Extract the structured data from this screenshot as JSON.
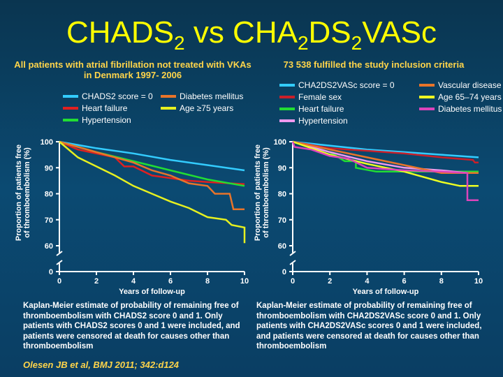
{
  "title": {
    "pre": "CHADS",
    "s1": "2",
    "mid": " vs CHA",
    "s2": "2",
    "mid2": "DS",
    "s3": "2",
    "post": "VASc"
  },
  "left_subtitle": "All patients with atrial fibrillation not treated with VKAs in Denmark 1997- 2006",
  "right_subtitle": "73 538 fulfilled the study inclusion criteria",
  "left_caption": "Kaplan-Meier estimate of probability of remaining free of thromboembolism with CHADS2 score 0 and 1. Only patients with CHADS2 scores 0 and 1 were included, and patients were censored at death for causes other than thromboembolism",
  "right_caption": "Kaplan-Meier estimate of probability of remaining free of thromboembolism with CHA2DS2VASc score 0 and 1. Only patients with CHA2DS2VASc scores 0 and 1 were included, and patients were censored at death for causes other than thromboembolism",
  "reference": "Olesen JB et al, BMJ 2011; 342:d124",
  "chart_data": [
    {
      "type": "line",
      "xlabel": "Years of follow-up",
      "ylabel": "Proportion of patients free of thromboembolism (%)",
      "xlim": [
        0,
        10
      ],
      "ylim": [
        60,
        100
      ],
      "axis_break": true,
      "xticks": [
        0,
        2,
        4,
        6,
        8,
        10
      ],
      "yticks": [
        0,
        60,
        70,
        80,
        90,
        100
      ],
      "legend": "top",
      "series": [
        {
          "name": "CHADS2 score = 0",
          "color": "#33ccff",
          "points": [
            [
              0,
              100
            ],
            [
              2,
              97.5
            ],
            [
              4,
              95.5
            ],
            [
              6,
              93
            ],
            [
              8,
              91
            ],
            [
              10,
              89
            ]
          ]
        },
        {
          "name": "Heart failure",
          "color": "#e02020",
          "points": [
            [
              0,
              100
            ],
            [
              1,
              97
            ],
            [
              2,
              95.5
            ],
            [
              3,
              94
            ],
            [
              3.5,
              90.5
            ],
            [
              4,
              90.5
            ],
            [
              5,
              87
            ],
            [
              6,
              86
            ],
            [
              7,
              85
            ],
            [
              8,
              84.5
            ],
            [
              10,
              83.7
            ]
          ]
        },
        {
          "name": "Hypertension",
          "color": "#22dd33",
          "points": [
            [
              0,
              100
            ],
            [
              2,
              96
            ],
            [
              4,
              92.5
            ],
            [
              6,
              89
            ],
            [
              8,
              85.5
            ],
            [
              10,
              83
            ]
          ]
        },
        {
          "name": "Diabetes mellitus",
          "color": "#e8742a",
          "points": [
            [
              0,
              100
            ],
            [
              2,
              96
            ],
            [
              4,
              92
            ],
            [
              5,
              89
            ],
            [
              6,
              87
            ],
            [
              7,
              84
            ],
            [
              8,
              83
            ],
            [
              8.4,
              80
            ],
            [
              9.2,
              80
            ],
            [
              9.3,
              77
            ],
            [
              9.4,
              74
            ],
            [
              10,
              74
            ]
          ]
        },
        {
          "name": "Age ≥75 years",
          "color": "#e6f020",
          "points": [
            [
              0,
              100
            ],
            [
              1,
              94
            ],
            [
              2,
              90.5
            ],
            [
              3,
              87
            ],
            [
              4,
              83
            ],
            [
              5,
              80
            ],
            [
              6,
              77
            ],
            [
              7,
              74.5
            ],
            [
              8,
              71
            ],
            [
              9,
              70
            ],
            [
              9.3,
              68
            ],
            [
              10,
              67
            ],
            [
              10,
              61
            ]
          ]
        }
      ]
    },
    {
      "type": "line",
      "xlabel": "Years of follow-up",
      "ylabel": "Proportion of patients free of thromboembolism (%)",
      "xlim": [
        0,
        10
      ],
      "ylim": [
        60,
        100
      ],
      "axis_break": true,
      "xticks": [
        0,
        2,
        4,
        6,
        8,
        10
      ],
      "yticks": [
        0,
        60,
        70,
        80,
        90,
        100
      ],
      "legend": "top",
      "series": [
        {
          "name": "CHA2DS2VASc score = 0",
          "color": "#33ccff",
          "points": [
            [
              0,
              100
            ],
            [
              2,
              98.5
            ],
            [
              4,
              97
            ],
            [
              6,
              96
            ],
            [
              8,
              95
            ],
            [
              10,
              94
            ]
          ]
        },
        {
          "name": "Female sex",
          "color": "#c8202a",
          "points": [
            [
              0,
              100
            ],
            [
              2,
              97.5
            ],
            [
              4,
              96.5
            ],
            [
              6,
              95.5
            ],
            [
              8,
              94
            ],
            [
              9.7,
              93
            ],
            [
              9.8,
              92
            ],
            [
              10,
              92
            ]
          ]
        },
        {
          "name": "Heart failure",
          "color": "#22dd33",
          "points": [
            [
              0,
              100
            ],
            [
              2,
              96
            ],
            [
              2.8,
              92.5
            ],
            [
              3.4,
              92.5
            ],
            [
              3.4,
              90
            ],
            [
              4.5,
              88.5
            ],
            [
              10,
              88.5
            ]
          ]
        },
        {
          "name": "Hypertension",
          "color": "#ee99ee",
          "points": [
            [
              0,
              100
            ],
            [
              2,
              96
            ],
            [
              4,
              92.5
            ],
            [
              6,
              90
            ],
            [
              8,
              89
            ],
            [
              9.4,
              88
            ],
            [
              10,
              88
            ]
          ]
        },
        {
          "name": "Vascular disease",
          "color": "#e8742a",
          "points": [
            [
              0,
              100
            ],
            [
              2,
              97
            ],
            [
              4,
              94
            ],
            [
              6,
              91
            ],
            [
              8,
              88
            ],
            [
              10,
              88
            ]
          ]
        },
        {
          "name": "Age 65–74 years",
          "color": "#eeff22",
          "points": [
            [
              0,
              100
            ],
            [
              2,
              95
            ],
            [
              4,
              91.5
            ],
            [
              6,
              88.5
            ],
            [
              8,
              84.5
            ],
            [
              9,
              83
            ],
            [
              10,
              83
            ]
          ]
        },
        {
          "name": "Diabetes mellitus",
          "color": "#dd44bb",
          "points": [
            [
              0,
              100
            ],
            [
              0.1,
              98
            ],
            [
              1,
              97
            ],
            [
              2,
              94.5
            ],
            [
              3,
              93.5
            ],
            [
              4,
              90
            ],
            [
              6,
              89
            ],
            [
              8,
              88.5
            ],
            [
              9.4,
              88
            ],
            [
              9.4,
              77.5
            ],
            [
              10,
              77.5
            ]
          ]
        }
      ]
    }
  ]
}
